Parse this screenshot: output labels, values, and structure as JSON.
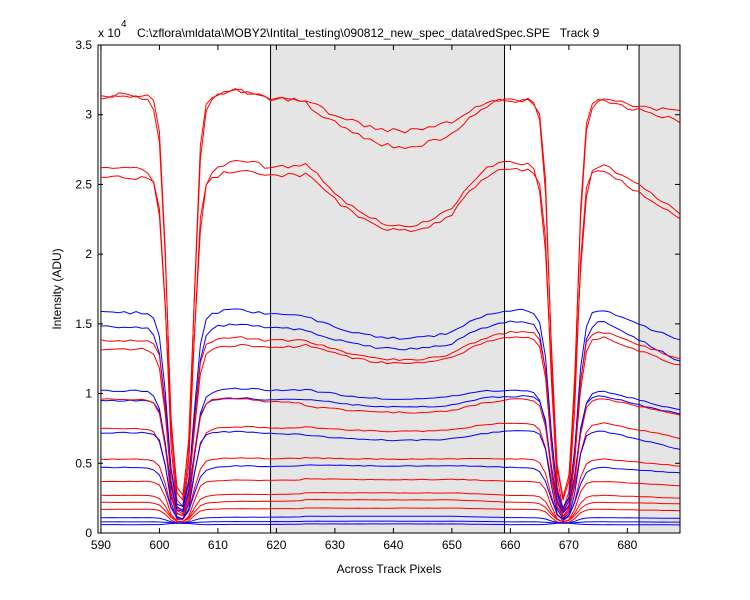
{
  "chart_data": {
    "type": "line",
    "title": "C:\\zflora\\mldata\\MOBY2\\Intital_testing\\090812_new_spec_data\\redSpec.SPE   Track 9",
    "xlabel": "Across Track Pixels",
    "ylabel": "Intensity (ADU)",
    "y_multiplier": "x 10",
    "y_exponent": "4",
    "xlim": [
      589.5,
      689
    ],
    "ylim": [
      0,
      35000
    ],
    "x_ticks": [
      590,
      600,
      610,
      620,
      630,
      640,
      650,
      660,
      670,
      680
    ],
    "y_ticks": [
      0,
      5000,
      10000,
      15000,
      20000,
      25000,
      30000,
      35000
    ],
    "y_tick_labels": [
      "0",
      "0.5",
      "1",
      "1.5",
      "2",
      "2.5",
      "3",
      "3.5"
    ],
    "shaded_regions": [
      [
        619,
        659
      ],
      [
        682,
        689
      ]
    ],
    "vertical_lines": [
      590,
      619,
      659,
      682
    ],
    "grid": false,
    "colors": {
      "red": "#ff0000",
      "blue": "#0000ff",
      "shade": "#e5e5e5"
    },
    "series": [
      {
        "color": "red",
        "left": 31400,
        "mid": 30800,
        "mid_dip": 0.1,
        "right": 31000,
        "end": 29500
      },
      {
        "color": "red",
        "left": 31300,
        "mid": 31000,
        "mid_dip": 0.07,
        "right": 31100,
        "end": 30200
      },
      {
        "color": "red",
        "left": 26200,
        "mid": 26500,
        "mid_dip": 0.17,
        "right": 26500,
        "end": 23000
      },
      {
        "color": "red",
        "left": 25500,
        "mid": 25800,
        "mid_dip": 0.16,
        "right": 26000,
        "end": 22500
      },
      {
        "color": "blue",
        "left": 15800,
        "mid": 15500,
        "mid_dip": 0.1,
        "right": 16000,
        "end": 13800
      },
      {
        "color": "blue",
        "left": 14800,
        "mid": 14500,
        "mid_dip": 0.09,
        "right": 15200,
        "end": 12300
      },
      {
        "color": "red",
        "left": 13800,
        "mid": 13800,
        "mid_dip": 0.1,
        "right": 14400,
        "end": 12500
      },
      {
        "color": "red",
        "left": 13200,
        "mid": 13500,
        "mid_dip": 0.1,
        "right": 14000,
        "end": 12000
      },
      {
        "color": "blue",
        "left": 10200,
        "mid": 10300,
        "mid_dip": 0.07,
        "right": 10200,
        "end": 8800
      },
      {
        "color": "blue",
        "left": 9500,
        "mid": 9600,
        "mid_dip": 0.06,
        "right": 9800,
        "end": 8500
      },
      {
        "color": "red",
        "left": 9600,
        "mid": 9100,
        "mid_dip": 0.05,
        "right": 9600,
        "end": 8500
      },
      {
        "color": "red",
        "left": 7500,
        "mid": 7600,
        "mid_dip": 0.04,
        "right": 7900,
        "end": 6800
      },
      {
        "color": "blue",
        "left": 7200,
        "mid": 7000,
        "mid_dip": 0.05,
        "right": 7300,
        "end": 6000
      },
      {
        "color": "red",
        "left": 5300,
        "mid": 5400,
        "mid_dip": 0.02,
        "right": 5300,
        "end": 4800
      },
      {
        "color": "blue",
        "left": 4700,
        "mid": 4900,
        "mid_dip": 0.02,
        "right": 4700,
        "end": 4300
      },
      {
        "color": "red",
        "left": 3700,
        "mid": 3900,
        "mid_dip": 0.02,
        "right": 3700,
        "end": 3400
      },
      {
        "color": "red",
        "left": 2700,
        "mid": 2900,
        "mid_dip": 0.01,
        "right": 2700,
        "end": 2500
      },
      {
        "color": "red",
        "left": 2200,
        "mid": 2400,
        "mid_dip": 0.01,
        "right": 2200,
        "end": 2100
      },
      {
        "color": "red",
        "left": 1700,
        "mid": 1800,
        "mid_dip": 0.01,
        "right": 1700,
        "end": 1600
      },
      {
        "color": "blue",
        "left": 1100,
        "mid": 1200,
        "mid_dip": 0.0,
        "right": 1100,
        "end": 1050
      },
      {
        "color": "blue",
        "left": 800,
        "mid": 850,
        "mid_dip": 0.0,
        "right": 800,
        "end": 780
      },
      {
        "color": "blue",
        "left": 600,
        "mid": 650,
        "mid_dip": 0.0,
        "right": 600,
        "end": 580
      }
    ],
    "trough_centers": [
      603.5,
      669
    ],
    "trough_floor": 700
  }
}
